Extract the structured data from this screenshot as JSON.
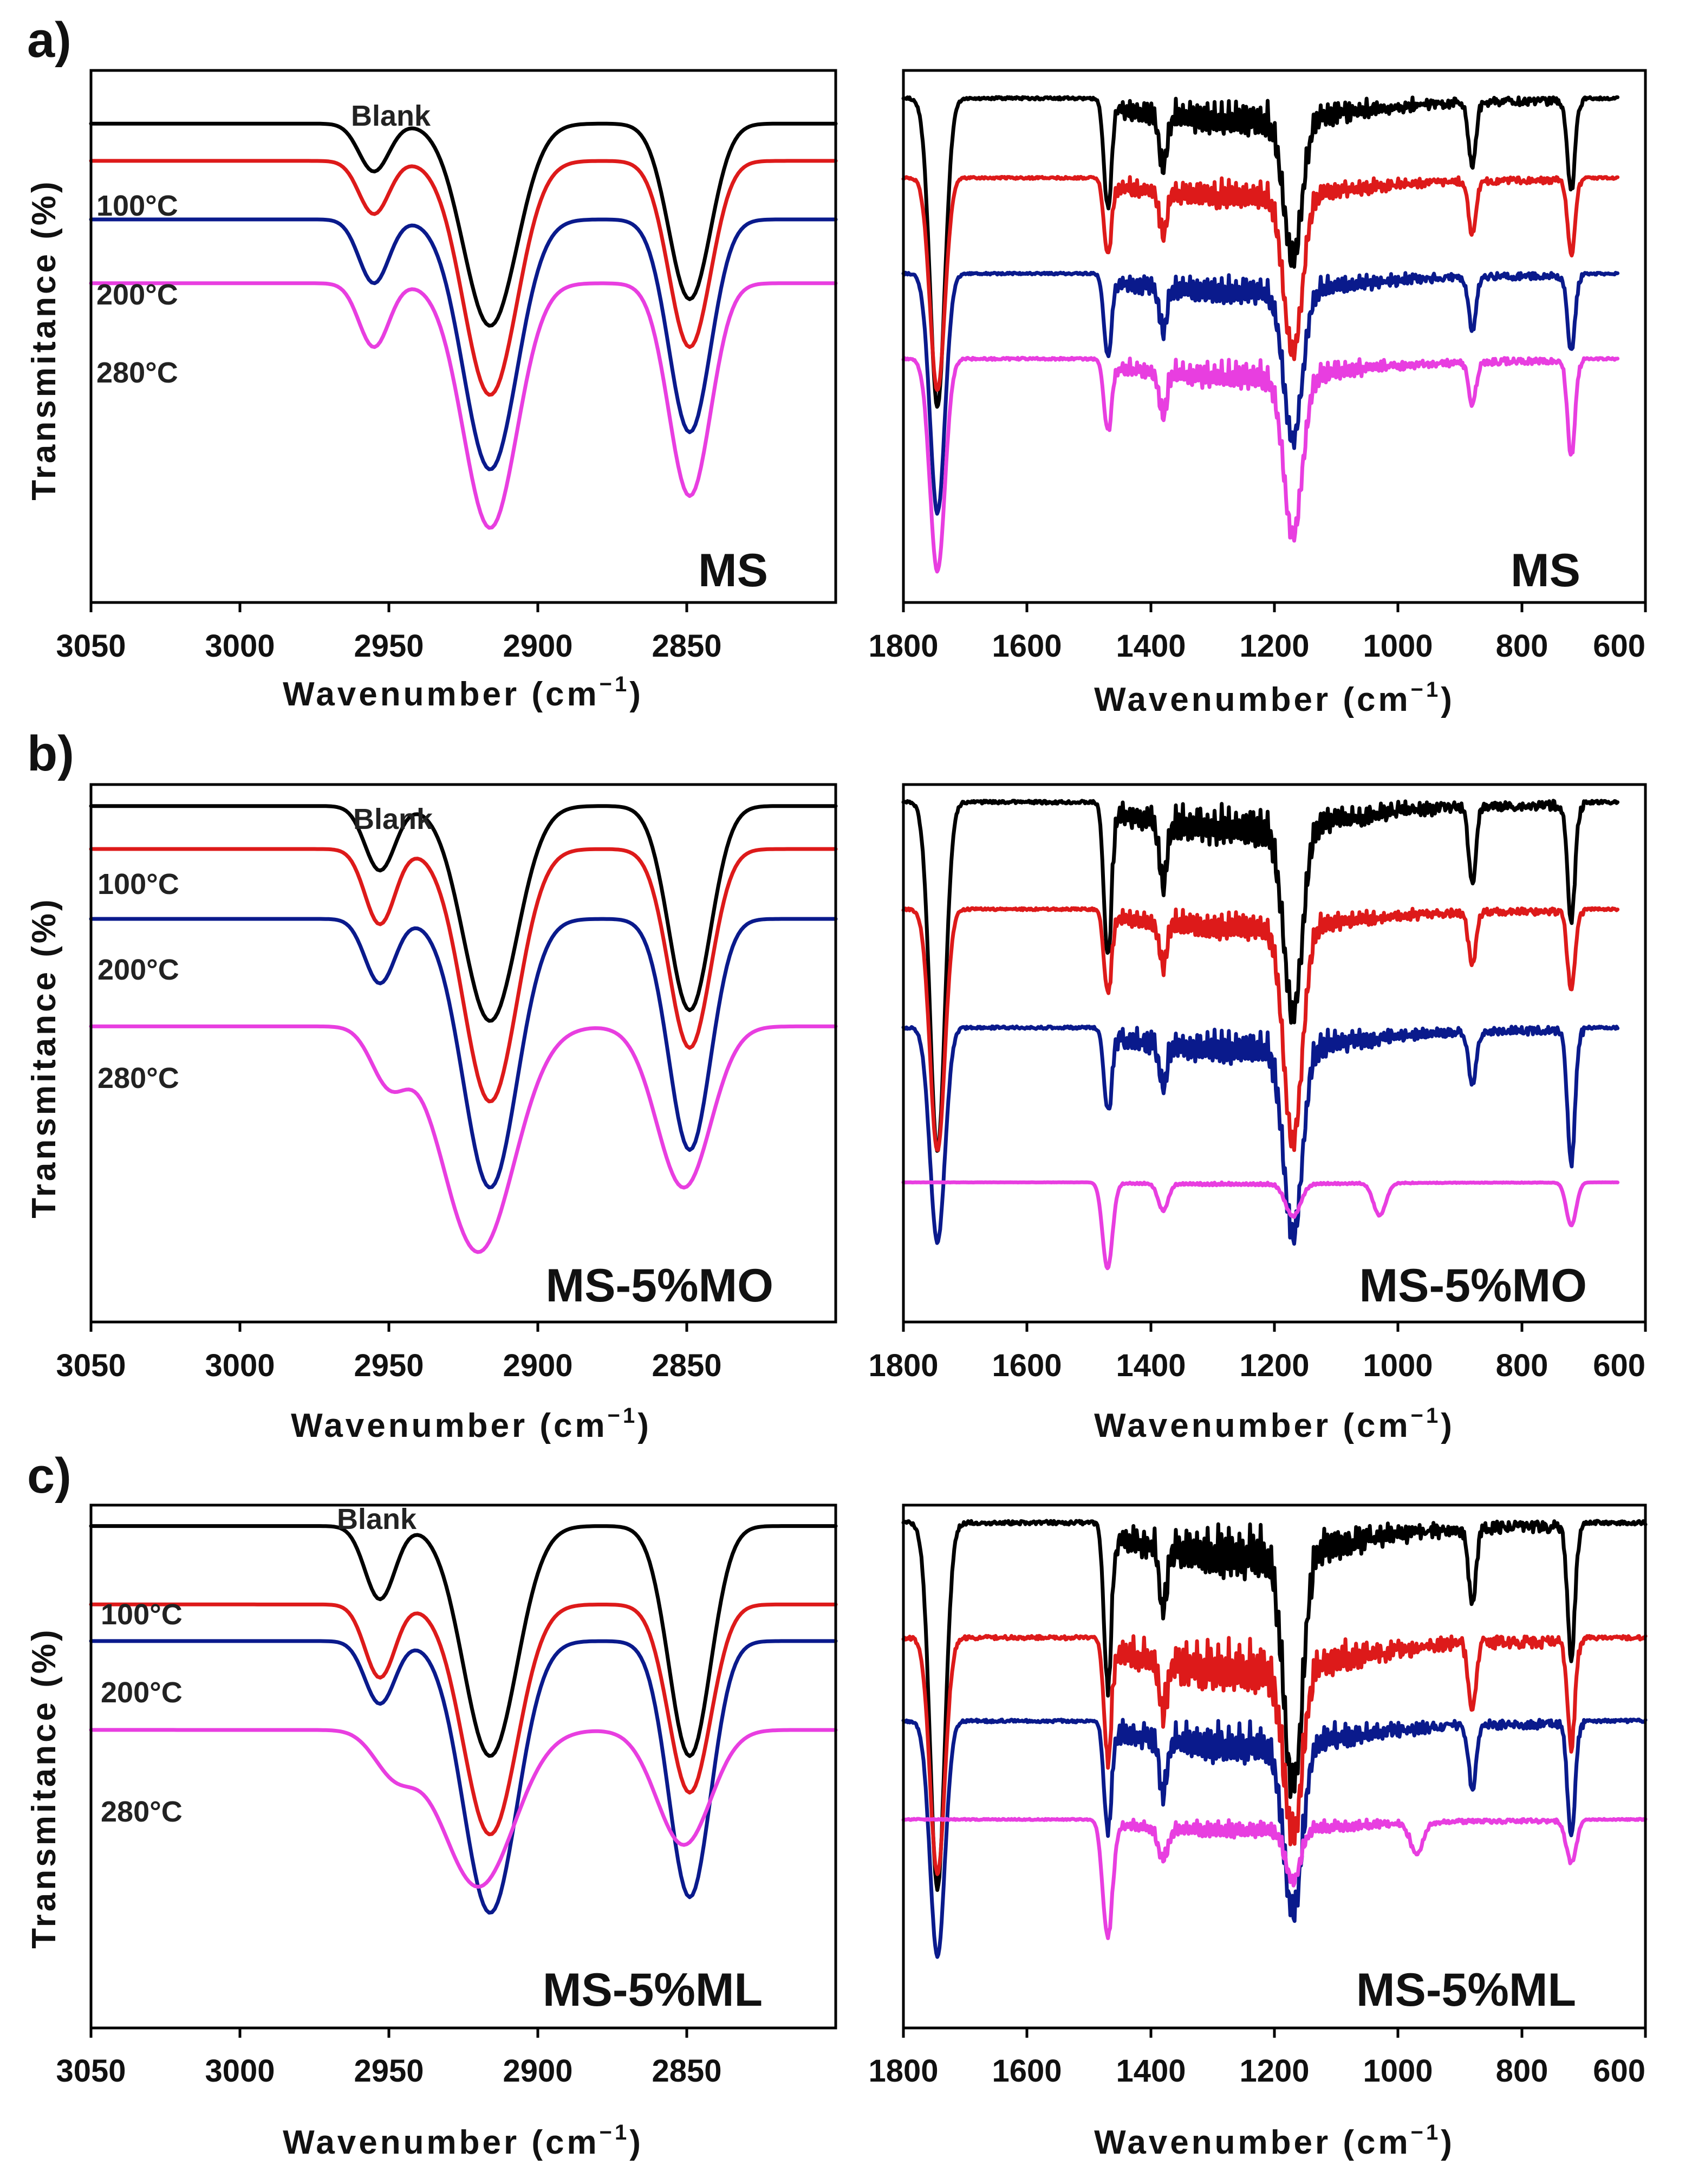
{
  "figure": {
    "panel_letters": [
      "a)",
      "b)",
      "c)"
    ]
  },
  "chart_data": [
    {
      "id": "a-left",
      "panel": "a)",
      "type": "line",
      "title": "",
      "sample_label": "MS",
      "xlabel": "Wavenumber (cm",
      "xlabel_sup": "−1",
      "xlabel_close": ")",
      "ylabel": "Transmitance (%)",
      "xlim": [
        3050,
        2800
      ],
      "x_ticks": [
        3050,
        3000,
        2950,
        2900,
        2850
      ],
      "series": [
        {
          "name": "Blank",
          "color": "#000000",
          "offset": 0.1,
          "line_label": "Blank",
          "peaks": [
            {
              "x": 2955,
              "depth": 0.09,
              "width": 5
            },
            {
              "x": 2916,
              "depth": 0.38,
              "width": 9
            },
            {
              "x": 2849,
              "depth": 0.33,
              "width": 7
            }
          ]
        },
        {
          "name": "100°C",
          "color": "#dd1a1a",
          "offset": 0.17,
          "line_label": "100°C",
          "peaks": [
            {
              "x": 2955,
              "depth": 0.1,
              "width": 5
            },
            {
              "x": 2916,
              "depth": 0.44,
              "width": 9
            },
            {
              "x": 2849,
              "depth": 0.35,
              "width": 7
            }
          ]
        },
        {
          "name": "200°C",
          "color": "#0a1a8c",
          "offset": 0.28,
          "line_label": "200°C",
          "peaks": [
            {
              "x": 2955,
              "depth": 0.12,
              "width": 5
            },
            {
              "x": 2916,
              "depth": 0.47,
              "width": 9
            },
            {
              "x": 2849,
              "depth": 0.4,
              "width": 7
            }
          ]
        },
        {
          "name": "280°C",
          "color": "#e83ee0",
          "offset": 0.4,
          "line_label": "280°C",
          "peaks": [
            {
              "x": 2955,
              "depth": 0.12,
              "width": 5
            },
            {
              "x": 2916,
              "depth": 0.46,
              "width": 9
            },
            {
              "x": 2849,
              "depth": 0.4,
              "width": 7
            }
          ]
        }
      ]
    },
    {
      "id": "a-right",
      "panel": "a)",
      "type": "line",
      "title": "",
      "sample_label": "MS",
      "xlabel": "Wavenumber (cm",
      "xlabel_sup": "−1",
      "xlabel_close": ")",
      "ylabel": "",
      "xlim": [
        1800,
        600
      ],
      "x_ticks": [
        1800,
        1600,
        1400,
        1200,
        1000,
        800,
        600
      ],
      "series": [
        {
          "name": "Blank",
          "color": "#000000",
          "offset": 0.05,
          "x_end": 645,
          "fine_amp": 0.06,
          "peaks": [
            {
              "x": 1745,
              "depth": 0.58,
              "width": 12
            },
            {
              "x": 1470,
              "depth": 0.2,
              "width": 6
            },
            {
              "x": 1380,
              "depth": 0.1,
              "width": 6
            },
            {
              "x": 1170,
              "depth": 0.26,
              "width": 15
            },
            {
              "x": 880,
              "depth": 0.12,
              "width": 6
            },
            {
              "x": 720,
              "depth": 0.17,
              "width": 6
            }
          ]
        },
        {
          "name": "100°C",
          "color": "#dd1a1a",
          "offset": 0.2,
          "x_end": 645,
          "fine_amp": 0.05,
          "peaks": [
            {
              "x": 1745,
              "depth": 0.4,
              "width": 12
            },
            {
              "x": 1470,
              "depth": 0.14,
              "width": 6
            },
            {
              "x": 1380,
              "depth": 0.08,
              "width": 6
            },
            {
              "x": 1170,
              "depth": 0.3,
              "width": 15
            },
            {
              "x": 880,
              "depth": 0.1,
              "width": 6
            },
            {
              "x": 720,
              "depth": 0.14,
              "width": 6
            }
          ]
        },
        {
          "name": "200°C",
          "color": "#0a1a8c",
          "offset": 0.38,
          "x_end": 645,
          "fine_amp": 0.05,
          "peaks": [
            {
              "x": 1745,
              "depth": 0.45,
              "width": 12
            },
            {
              "x": 1470,
              "depth": 0.15,
              "width": 6
            },
            {
              "x": 1380,
              "depth": 0.08,
              "width": 6
            },
            {
              "x": 1170,
              "depth": 0.28,
              "width": 15
            },
            {
              "x": 880,
              "depth": 0.1,
              "width": 6
            },
            {
              "x": 720,
              "depth": 0.14,
              "width": 6
            }
          ]
        },
        {
          "name": "280°C",
          "color": "#e83ee0",
          "offset": 0.54,
          "x_end": 645,
          "fine_amp": 0.05,
          "peaks": [
            {
              "x": 1745,
              "depth": 0.4,
              "width": 12
            },
            {
              "x": 1470,
              "depth": 0.13,
              "width": 6
            },
            {
              "x": 1380,
              "depth": 0.08,
              "width": 6
            },
            {
              "x": 1170,
              "depth": 0.3,
              "width": 15
            },
            {
              "x": 880,
              "depth": 0.08,
              "width": 6
            },
            {
              "x": 720,
              "depth": 0.18,
              "width": 6
            }
          ]
        }
      ]
    },
    {
      "id": "b-left",
      "panel": "b)",
      "type": "line",
      "title": "",
      "sample_label": "MS-5%MO",
      "xlabel": "Wavenumber (cm",
      "xlabel_sup": "−1",
      "xlabel_close": ")",
      "ylabel": "Transmitance (%)",
      "xlim": [
        3050,
        2800
      ],
      "x_ticks": [
        3050,
        3000,
        2950,
        2900,
        2850
      ],
      "series": [
        {
          "name": "Blank",
          "color": "#000000",
          "offset": 0.04,
          "line_label": "Blank",
          "peaks": [
            {
              "x": 2953,
              "depth": 0.12,
              "width": 5
            },
            {
              "x": 2916,
              "depth": 0.4,
              "width": 9
            },
            {
              "x": 2849,
              "depth": 0.38,
              "width": 7
            }
          ]
        },
        {
          "name": "100°C",
          "color": "#dd1a1a",
          "offset": 0.12,
          "line_label": "100°C",
          "peaks": [
            {
              "x": 2953,
              "depth": 0.14,
              "width": 5
            },
            {
              "x": 2916,
              "depth": 0.47,
              "width": 9
            },
            {
              "x": 2849,
              "depth": 0.37,
              "width": 7
            }
          ]
        },
        {
          "name": "200°C",
          "color": "#0a1a8c",
          "offset": 0.25,
          "line_label": "200°C",
          "peaks": [
            {
              "x": 2953,
              "depth": 0.12,
              "width": 5
            },
            {
              "x": 2916,
              "depth": 0.5,
              "width": 9
            },
            {
              "x": 2849,
              "depth": 0.43,
              "width": 7
            }
          ]
        },
        {
          "name": "280°C",
          "color": "#e83ee0",
          "offset": 0.45,
          "line_label": "280°C",
          "peaks": [
            {
              "x": 2950,
              "depth": 0.1,
              "width": 6
            },
            {
              "x": 2920,
              "depth": 0.42,
              "width": 12
            },
            {
              "x": 2851,
              "depth": 0.3,
              "width": 9
            }
          ]
        }
      ]
    },
    {
      "id": "b-right",
      "panel": "b)",
      "type": "line",
      "title": "",
      "sample_label": "MS-5%MO",
      "xlabel": "Wavenumber (cm",
      "xlabel_sup": "−1",
      "xlabel_close": ")",
      "ylabel": "",
      "xlim": [
        1800,
        600
      ],
      "x_ticks": [
        1800,
        1600,
        1400,
        1200,
        1000,
        800,
        600
      ],
      "series": [
        {
          "name": "Blank",
          "color": "#000000",
          "offset": 0.03,
          "x_end": 645,
          "fine_amp": 0.07,
          "peaks": [
            {
              "x": 1745,
              "depth": 0.65,
              "width": 12
            },
            {
              "x": 1470,
              "depth": 0.28,
              "width": 6
            },
            {
              "x": 1380,
              "depth": 0.12,
              "width": 6
            },
            {
              "x": 1170,
              "depth": 0.35,
              "width": 15
            },
            {
              "x": 880,
              "depth": 0.14,
              "width": 6
            },
            {
              "x": 720,
              "depth": 0.22,
              "width": 6
            }
          ]
        },
        {
          "name": "100°C",
          "color": "#dd1a1a",
          "offset": 0.23,
          "x_end": 645,
          "fine_amp": 0.05,
          "peaks": [
            {
              "x": 1745,
              "depth": 0.45,
              "width": 12
            },
            {
              "x": 1470,
              "depth": 0.15,
              "width": 6
            },
            {
              "x": 1380,
              "depth": 0.08,
              "width": 6
            },
            {
              "x": 1170,
              "depth": 0.4,
              "width": 15
            },
            {
              "x": 880,
              "depth": 0.1,
              "width": 6
            },
            {
              "x": 720,
              "depth": 0.15,
              "width": 6
            }
          ]
        },
        {
          "name": "200°C",
          "color": "#0a1a8c",
          "offset": 0.45,
          "x_end": 645,
          "fine_amp": 0.06,
          "peaks": [
            {
              "x": 1745,
              "depth": 0.4,
              "width": 12
            },
            {
              "x": 1470,
              "depth": 0.15,
              "width": 6
            },
            {
              "x": 1380,
              "depth": 0.08,
              "width": 6
            },
            {
              "x": 1170,
              "depth": 0.35,
              "width": 15
            },
            {
              "x": 880,
              "depth": 0.1,
              "width": 6
            },
            {
              "x": 720,
              "depth": 0.25,
              "width": 6
            }
          ]
        },
        {
          "name": "280°C",
          "color": "#e83ee0",
          "offset": 0.74,
          "x_end": 645,
          "fine_amp": 0.005,
          "peaks": [
            {
              "x": 1470,
              "depth": 0.16,
              "width": 8
            },
            {
              "x": 1380,
              "depth": 0.05,
              "width": 8
            },
            {
              "x": 1170,
              "depth": 0.06,
              "width": 12
            },
            {
              "x": 1030,
              "depth": 0.06,
              "width": 10
            },
            {
              "x": 720,
              "depth": 0.08,
              "width": 8
            }
          ]
        }
      ]
    },
    {
      "id": "c-left",
      "panel": "c)",
      "type": "line",
      "title": "",
      "sample_label": "MS-5%ML",
      "xlabel": "Wavenumber (cm",
      "xlabel_sup": "−1",
      "xlabel_close": ")",
      "ylabel": "Transmitance (%)",
      "xlim": [
        3050,
        2800
      ],
      "x_ticks": [
        3050,
        3000,
        2950,
        2900,
        2850
      ],
      "series": [
        {
          "name": "Blank",
          "color": "#000000",
          "offset": 0.04,
          "line_label": "Blank",
          "peaks": [
            {
              "x": 2953,
              "depth": 0.14,
              "width": 5
            },
            {
              "x": 2916,
              "depth": 0.44,
              "width": 9
            },
            {
              "x": 2849,
              "depth": 0.44,
              "width": 7
            }
          ]
        },
        {
          "name": "100°C",
          "color": "#dd1a1a",
          "offset": 0.19,
          "line_label": "100°C",
          "peaks": [
            {
              "x": 2953,
              "depth": 0.14,
              "width": 5
            },
            {
              "x": 2916,
              "depth": 0.44,
              "width": 9
            },
            {
              "x": 2849,
              "depth": 0.36,
              "width": 7
            }
          ]
        },
        {
          "name": "200°C",
          "color": "#0a1a8c",
          "offset": 0.26,
          "line_label": "200°C",
          "peaks": [
            {
              "x": 2953,
              "depth": 0.12,
              "width": 5
            },
            {
              "x": 2916,
              "depth": 0.52,
              "width": 9
            },
            {
              "x": 2849,
              "depth": 0.49,
              "width": 7
            }
          ]
        },
        {
          "name": "280°C",
          "color": "#e83ee0",
          "offset": 0.43,
          "line_label": "280°C",
          "peaks": [
            {
              "x": 2948,
              "depth": 0.08,
              "width": 7
            },
            {
              "x": 2920,
              "depth": 0.3,
              "width": 12
            },
            {
              "x": 2851,
              "depth": 0.22,
              "width": 9
            }
          ]
        }
      ]
    },
    {
      "id": "c-right",
      "panel": "c)",
      "type": "line",
      "title": "",
      "sample_label": "MS-5%ML",
      "xlabel": "Wavenumber (cm",
      "xlabel_sup": "−1",
      "xlabel_close": ")",
      "ylabel": "",
      "xlim": [
        1800,
        600
      ],
      "x_ticks": [
        1800,
        1600,
        1400,
        1200,
        1000,
        800,
        600
      ],
      "series": [
        {
          "name": "Blank",
          "color": "#000000",
          "offset": 0.03,
          "x_end": 600,
          "fine_amp": 0.09,
          "peaks": [
            {
              "x": 1745,
              "depth": 0.7,
              "width": 12
            },
            {
              "x": 1470,
              "depth": 0.3,
              "width": 6
            },
            {
              "x": 1380,
              "depth": 0.12,
              "width": 6
            },
            {
              "x": 1170,
              "depth": 0.45,
              "width": 15
            },
            {
              "x": 880,
              "depth": 0.15,
              "width": 6
            },
            {
              "x": 720,
              "depth": 0.25,
              "width": 6
            }
          ]
        },
        {
          "name": "100°C",
          "color": "#dd1a1a",
          "offset": 0.25,
          "x_end": 600,
          "fine_amp": 0.09,
          "peaks": [
            {
              "x": 1745,
              "depth": 0.45,
              "width": 12
            },
            {
              "x": 1470,
              "depth": 0.22,
              "width": 6
            },
            {
              "x": 1380,
              "depth": 0.1,
              "width": 6
            },
            {
              "x": 1170,
              "depth": 0.32,
              "width": 15
            },
            {
              "x": 880,
              "depth": 0.13,
              "width": 6
            },
            {
              "x": 720,
              "depth": 0.2,
              "width": 6
            }
          ]
        },
        {
          "name": "200°C",
          "color": "#0a1a8c",
          "offset": 0.41,
          "x_end": 600,
          "fine_amp": 0.07,
          "peaks": [
            {
              "x": 1745,
              "depth": 0.45,
              "width": 12
            },
            {
              "x": 1470,
              "depth": 0.2,
              "width": 6
            },
            {
              "x": 1380,
              "depth": 0.1,
              "width": 6
            },
            {
              "x": 1170,
              "depth": 0.32,
              "width": 15
            },
            {
              "x": 880,
              "depth": 0.12,
              "width": 6
            },
            {
              "x": 720,
              "depth": 0.22,
              "width": 6
            }
          ]
        },
        {
          "name": "280°C",
          "color": "#e83ee0",
          "offset": 0.6,
          "x_end": 600,
          "fine_amp": 0.03,
          "peaks": [
            {
              "x": 1470,
              "depth": 0.22,
              "width": 8
            },
            {
              "x": 1380,
              "depth": 0.06,
              "width": 8
            },
            {
              "x": 1170,
              "depth": 0.1,
              "width": 12
            },
            {
              "x": 970,
              "depth": 0.06,
              "width": 10
            },
            {
              "x": 720,
              "depth": 0.08,
              "width": 8
            }
          ]
        }
      ]
    }
  ]
}
